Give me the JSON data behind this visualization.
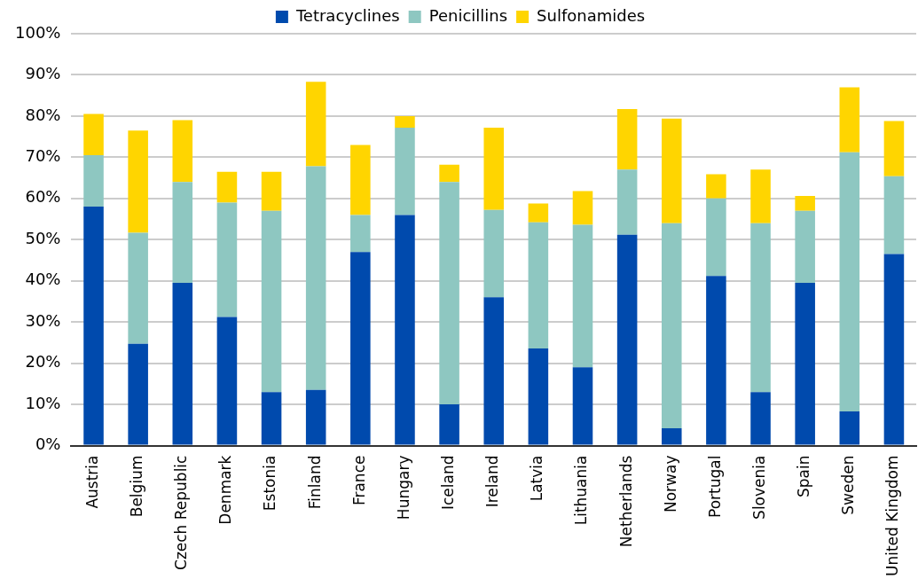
{
  "chart_data": {
    "type": "bar",
    "stacked": true,
    "legend": "top",
    "grid": "y",
    "categories": [
      "Austria",
      "Belgium",
      "Czech Republic",
      "Denmark",
      "Estonia",
      "Finland",
      "France",
      "Hungary",
      "Iceland",
      "Ireland",
      "Latvia",
      "Lithuania",
      "Netherlands",
      "Norway",
      "Portugal",
      "Slovenia",
      "Spain",
      "Sweden",
      "United Kingdom"
    ],
    "series": [
      {
        "name": "Tetracyclines",
        "color": "#004aad",
        "values": [
          58,
          24.7,
          39.5,
          31.2,
          13,
          13.5,
          47,
          56,
          10,
          36,
          23.6,
          19,
          51.2,
          4.2,
          41.2,
          13,
          39.5,
          8.3,
          46.5
        ]
      },
      {
        "name": "Penicillins",
        "color": "#8ec7c1",
        "values": [
          12.5,
          27,
          24.5,
          27.8,
          44,
          54.3,
          9,
          21.2,
          54,
          21.2,
          30.6,
          34.6,
          15.8,
          49.8,
          18.8,
          41,
          17.5,
          62.9,
          18.9
        ]
      },
      {
        "name": "Sulfonamides",
        "color": "#ffd500",
        "values": [
          10,
          24.8,
          15,
          7.5,
          9.5,
          20.5,
          17,
          2.8,
          4.2,
          20,
          4.6,
          8.2,
          14.7,
          25.4,
          5.9,
          13,
          3.6,
          15.8,
          13.4
        ]
      }
    ],
    "ylim": [
      0,
      100
    ],
    "yticks": [
      {
        "value": 0,
        "label": "0%"
      },
      {
        "value": 10,
        "label": "10%"
      },
      {
        "value": 20,
        "label": "20%"
      },
      {
        "value": 30,
        "label": "30%"
      },
      {
        "value": 40,
        "label": "40%"
      },
      {
        "value": 50,
        "label": "50%"
      },
      {
        "value": 60,
        "label": "60%"
      },
      {
        "value": 70,
        "label": "70%"
      },
      {
        "value": 80,
        "label": "80%"
      },
      {
        "value": 90,
        "label": "90%"
      },
      {
        "value": 100,
        "label": "100%"
      }
    ]
  }
}
